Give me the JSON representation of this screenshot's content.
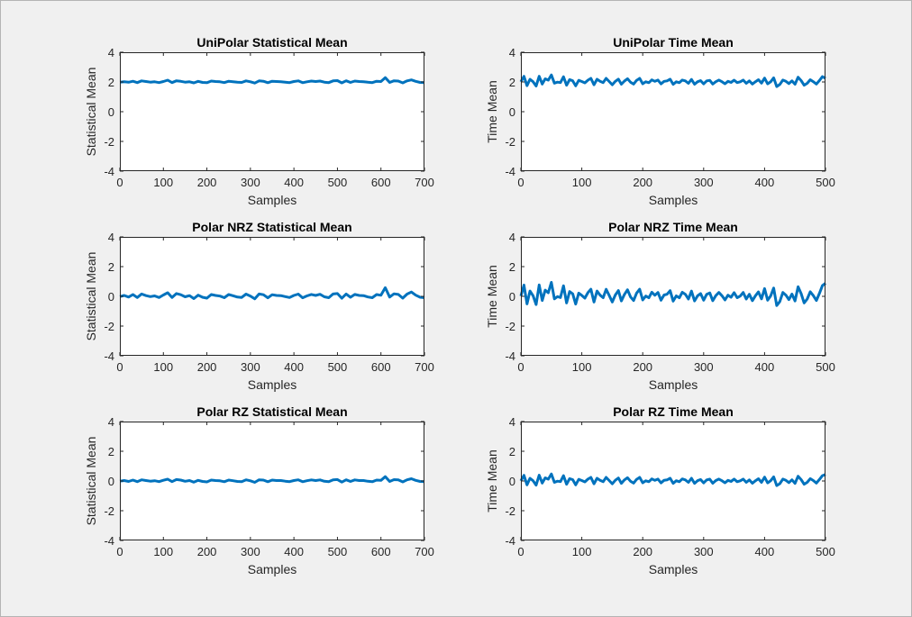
{
  "figure": {
    "background": "#f0f0f0",
    "axes_background": "#ffffff",
    "axes_color": "#262626",
    "line_color": "#0072bd"
  },
  "chart_data": [
    {
      "type": "line",
      "title": "UniPolar Statistical Mean",
      "xlabel": "Samples",
      "ylabel": "Statistical Mean",
      "xlim": [
        0,
        700
      ],
      "ylim": [
        -4,
        4
      ],
      "xticks": [
        0,
        100,
        200,
        300,
        400,
        500,
        600,
        700
      ],
      "yticks": [
        -4,
        -2,
        0,
        2,
        4
      ],
      "series": [
        {
          "x_start": 0,
          "x_step": 10,
          "values": [
            1.99,
            2.01,
            1.98,
            2.05,
            1.96,
            2.07,
            2.03,
            1.99,
            2.01,
            1.96,
            2.03,
            2.12,
            1.96,
            2.08,
            2.04,
            1.99,
            2.01,
            1.94,
            2.04,
            1.97,
            1.95,
            2.06,
            2.03,
            2.01,
            1.96,
            2.05,
            2.02,
            1.98,
            1.97,
            2.07,
            2.01,
            1.93,
            2.07,
            2.05,
            1.95,
            2.05,
            2.03,
            2.02,
            1.99,
            1.96,
            2.03,
            2.07,
            1.95,
            2.01,
            2.06,
            2.03,
            2.06,
            1.99,
            1.96,
            2.07,
            2.09,
            1.94,
            2.08,
            1.97,
            2.06,
            2.03,
            2.02,
            1.98,
            1.96,
            2.05,
            2.03,
            2.29,
            1.97,
            2.08,
            2.06,
            1.94,
            2.07,
            2.14,
            2.04,
            1.97,
            1.95
          ]
        }
      ]
    },
    {
      "type": "line",
      "title": "UniPolar Time Mean",
      "xlabel": "Samples",
      "ylabel": "Time Mean",
      "xlim": [
        0,
        500
      ],
      "ylim": [
        -4,
        4
      ],
      "xticks": [
        0,
        100,
        200,
        300,
        400,
        500
      ],
      "yticks": [
        -4,
        -2,
        0,
        2,
        4
      ],
      "series": [
        {
          "x_start": 0,
          "x_step": 5,
          "values": [
            2.01,
            2.38,
            1.75,
            2.18,
            2.02,
            1.73,
            2.38,
            1.86,
            2.21,
            2.12,
            2.47,
            1.92,
            1.99,
            1.96,
            2.35,
            1.78,
            2.16,
            2.08,
            1.74,
            2.11,
            2.03,
            1.94,
            2.12,
            2.24,
            1.81,
            2.18,
            2.04,
            1.96,
            2.24,
            2.03,
            1.81,
            2.04,
            2.19,
            1.85,
            2.06,
            2.22,
            1.98,
            1.86,
            2.11,
            2.24,
            1.88,
            2.01,
            1.95,
            2.14,
            2.04,
            2.13,
            1.87,
            2.04,
            2.07,
            2.19,
            1.84,
            2.01,
            1.95,
            2.13,
            2.07,
            1.91,
            2.17,
            1.85,
            2.01,
            2.09,
            1.87,
            2.07,
            2.11,
            1.86,
            2.02,
            2.13,
            2.02,
            1.88,
            2.04,
            1.97,
            2.12,
            1.96,
            2.01,
            2.13,
            1.91,
            2.07,
            1.86,
            2.02,
            2.15,
            1.92,
            2.26,
            1.87,
            2.01,
            2.28,
            1.69,
            1.83,
            2.13,
            2.04,
            1.89,
            2.07,
            1.85,
            2.32,
            2.09,
            1.78,
            1.91,
            2.15,
            2.02,
            1.86,
            2.09,
            2.36,
            2.24
          ]
        }
      ]
    },
    {
      "type": "line",
      "title": "Polar NRZ Statistical Mean",
      "xlabel": "Samples",
      "ylabel": "Statistical Mean",
      "xlim": [
        0,
        700
      ],
      "ylim": [
        -4,
        4
      ],
      "xticks": [
        0,
        100,
        200,
        300,
        400,
        500,
        600,
        700
      ],
      "yticks": [
        -4,
        -2,
        0,
        2,
        4
      ],
      "series": [
        {
          "x_start": 0,
          "x_step": 10,
          "values": [
            -0.02,
            0.06,
            -0.05,
            0.12,
            -0.08,
            0.16,
            0.05,
            -0.02,
            0.03,
            -0.08,
            0.09,
            0.24,
            -0.08,
            0.19,
            0.11,
            -0.03,
            0.05,
            -0.15,
            0.08,
            -0.06,
            -0.12,
            0.12,
            0.06,
            0.02,
            -0.09,
            0.12,
            0.04,
            -0.05,
            -0.07,
            0.15,
            0.02,
            -0.17,
            0.16,
            0.11,
            -0.1,
            0.11,
            0.06,
            0.05,
            -0.02,
            -0.08,
            0.06,
            0.15,
            -0.1,
            0.03,
            0.13,
            0.06,
            0.14,
            -0.03,
            -0.09,
            0.16,
            0.19,
            -0.13,
            0.16,
            -0.06,
            0.13,
            0.06,
            0.05,
            -0.04,
            -0.09,
            0.12,
            0.07,
            0.58,
            -0.05,
            0.17,
            0.13,
            -0.12,
            0.15,
            0.29,
            0.08,
            -0.06,
            -0.09
          ]
        }
      ]
    },
    {
      "type": "line",
      "title": "Polar NRZ Time Mean",
      "xlabel": "Samples",
      "ylabel": "Time Mean",
      "xlim": [
        0,
        500
      ],
      "ylim": [
        -4,
        4
      ],
      "xticks": [
        0,
        100,
        200,
        300,
        400,
        500
      ],
      "yticks": [
        -4,
        -2,
        0,
        2,
        4
      ],
      "series": [
        {
          "x_start": 0,
          "x_step": 5,
          "values": [
            0.02,
            0.76,
            -0.51,
            0.36,
            0.04,
            -0.55,
            0.77,
            -0.28,
            0.42,
            0.24,
            0.94,
            -0.17,
            -0.02,
            -0.08,
            0.71,
            -0.44,
            0.32,
            0.17,
            -0.52,
            0.22,
            0.06,
            -0.12,
            0.25,
            0.48,
            -0.38,
            0.36,
            0.08,
            -0.09,
            0.47,
            0.06,
            -0.38,
            0.09,
            0.39,
            -0.31,
            0.13,
            0.44,
            -0.04,
            -0.28,
            0.22,
            0.48,
            -0.24,
            0.02,
            -0.1,
            0.28,
            0.07,
            0.26,
            -0.26,
            0.09,
            0.14,
            0.38,
            -0.32,
            0.03,
            -0.1,
            0.27,
            0.14,
            -0.18,
            0.35,
            -0.31,
            0.03,
            0.19,
            -0.26,
            0.14,
            0.23,
            -0.29,
            0.05,
            0.26,
            0.04,
            -0.24,
            0.08,
            -0.06,
            0.25,
            -0.09,
            0.02,
            0.26,
            -0.18,
            0.14,
            -0.29,
            0.04,
            0.3,
            -0.17,
            0.52,
            -0.26,
            0.03,
            0.56,
            -0.62,
            -0.35,
            0.26,
            0.08,
            -0.22,
            0.15,
            -0.31,
            0.64,
            0.18,
            -0.44,
            -0.18,
            0.31,
            0.05,
            -0.28,
            0.19,
            0.72,
            0.88
          ]
        }
      ]
    },
    {
      "type": "line",
      "title": "Polar RZ Statistical Mean",
      "xlabel": "Samples",
      "ylabel": "Statistical Mean",
      "xlim": [
        0,
        700
      ],
      "ylim": [
        -4,
        4
      ],
      "xticks": [
        0,
        100,
        200,
        300,
        400,
        500,
        600,
        700
      ],
      "yticks": [
        -4,
        -2,
        0,
        2,
        4
      ],
      "series": [
        {
          "x_start": 0,
          "x_step": 10,
          "values": [
            -0.01,
            0.03,
            -0.03,
            0.06,
            -0.04,
            0.08,
            0.03,
            -0.01,
            0.02,
            -0.04,
            0.05,
            0.12,
            -0.04,
            0.1,
            0.06,
            -0.02,
            0.03,
            -0.08,
            0.04,
            -0.03,
            -0.06,
            0.06,
            0.03,
            0.01,
            -0.05,
            0.06,
            0.02,
            -0.03,
            -0.04,
            0.08,
            0.01,
            -0.09,
            0.08,
            0.06,
            -0.05,
            0.06,
            0.03,
            0.03,
            -0.01,
            -0.04,
            0.03,
            0.08,
            -0.05,
            0.02,
            0.07,
            0.03,
            0.07,
            -0.02,
            -0.05,
            0.08,
            0.1,
            -0.07,
            0.08,
            -0.03,
            0.07,
            0.03,
            0.03,
            -0.02,
            -0.05,
            0.06,
            0.04,
            0.29,
            -0.03,
            0.09,
            0.07,
            -0.06,
            0.08,
            0.15,
            0.04,
            -0.03,
            -0.05
          ]
        }
      ]
    },
    {
      "type": "line",
      "title": "Polar RZ Time Mean",
      "xlabel": "Samples",
      "ylabel": "Time Mean",
      "xlim": [
        0,
        500
      ],
      "ylim": [
        -4,
        4
      ],
      "xticks": [
        0,
        100,
        200,
        300,
        400,
        500
      ],
      "yticks": [
        -4,
        -2,
        0,
        2,
        4
      ],
      "series": [
        {
          "x_start": 0,
          "x_step": 5,
          "values": [
            0.01,
            0.38,
            -0.26,
            0.18,
            0.02,
            -0.28,
            0.39,
            -0.14,
            0.21,
            0.12,
            0.47,
            -0.09,
            -0.01,
            -0.04,
            0.36,
            -0.22,
            0.16,
            0.09,
            -0.26,
            0.11,
            0.03,
            -0.06,
            0.13,
            0.24,
            -0.19,
            0.18,
            0.04,
            -0.05,
            0.24,
            0.03,
            -0.19,
            0.05,
            0.2,
            -0.16,
            0.07,
            0.22,
            -0.02,
            -0.14,
            0.11,
            0.24,
            -0.12,
            0.01,
            -0.05,
            0.14,
            0.04,
            0.13,
            -0.13,
            0.05,
            0.07,
            0.19,
            -0.16,
            0.02,
            -0.05,
            0.14,
            0.07,
            -0.09,
            0.18,
            -0.16,
            0.02,
            0.1,
            -0.13,
            0.07,
            0.12,
            -0.15,
            0.03,
            0.13,
            0.02,
            -0.12,
            0.04,
            -0.03,
            0.13,
            -0.05,
            0.01,
            0.13,
            -0.09,
            0.07,
            -0.15,
            0.02,
            0.15,
            -0.09,
            0.26,
            -0.13,
            0.02,
            0.28,
            -0.31,
            -0.18,
            0.13,
            0.04,
            -0.11,
            0.08,
            -0.16,
            0.32,
            0.09,
            -0.22,
            -0.09,
            0.16,
            0.03,
            -0.14,
            0.1,
            0.36,
            0.44
          ]
        }
      ]
    }
  ]
}
